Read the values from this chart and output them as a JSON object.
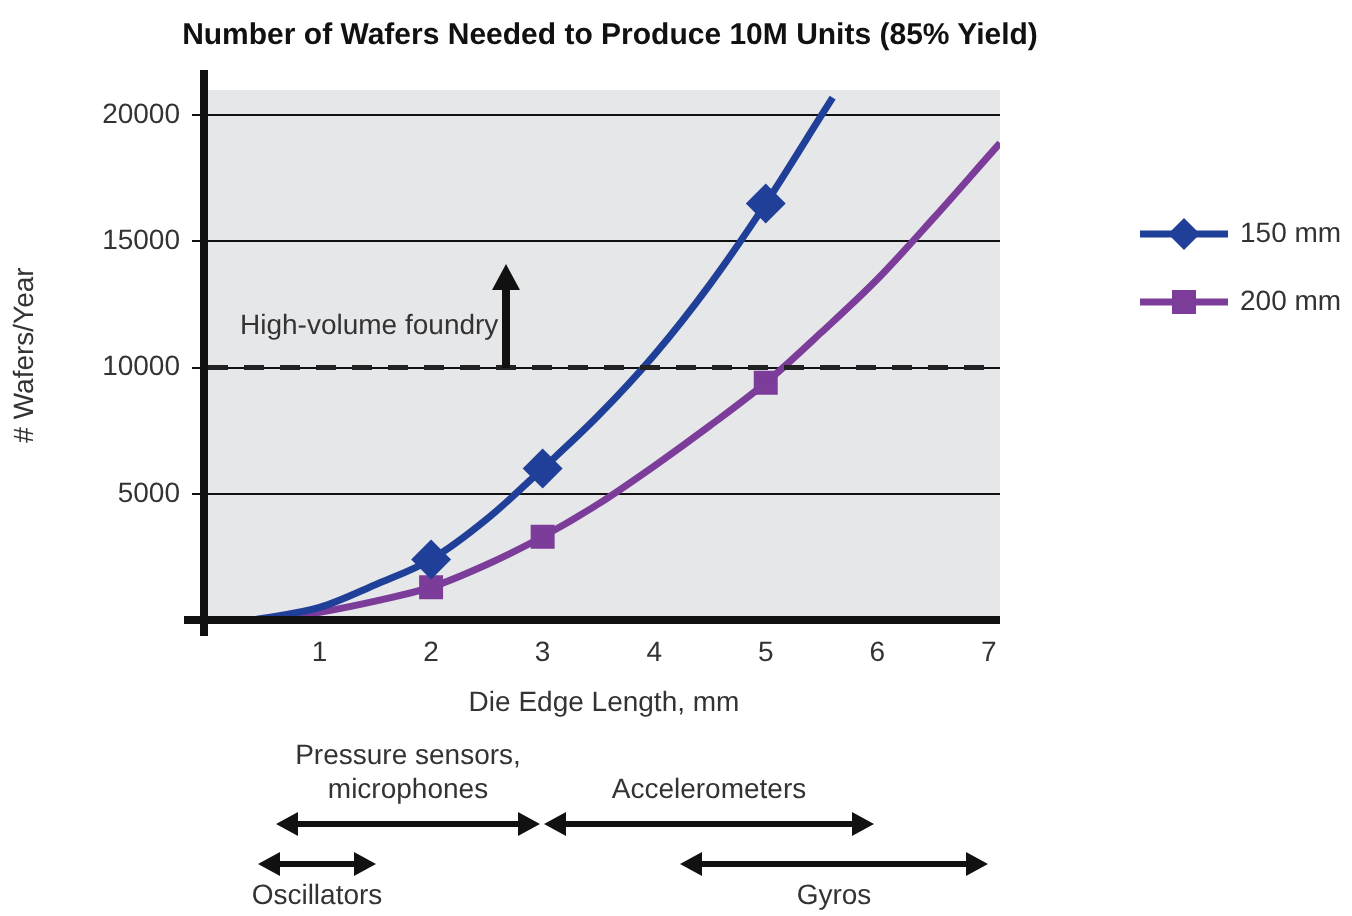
{
  "chart_data": {
    "type": "line",
    "title": "Number of Wafers Needed to Produce 10M Units (85% Yield)",
    "xlabel": "Die Edge Length, mm",
    "ylabel": "# Wafers/Year",
    "xlim": [
      0,
      7.1
    ],
    "xticks": [
      1,
      2,
      3,
      4,
      5,
      6,
      7
    ],
    "ylim": [
      0,
      21000
    ],
    "yticks": [
      5000,
      10000,
      15000,
      20000
    ],
    "grid": "y",
    "legend": "right",
    "series": [
      {
        "name": "150 mm",
        "color": "#1f3f99",
        "marker": "none",
        "x": [
          0.4,
          1,
          1.5,
          2,
          2.5,
          3,
          3.5,
          4,
          4.5,
          5,
          5.5,
          5.6
        ],
        "values": [
          0,
          500,
          1400,
          2400,
          4000,
          6000,
          8100,
          10500,
          13300,
          16500,
          20000,
          20700
        ]
      },
      {
        "color": "#1f3f99",
        "type": "scatter",
        "marker": "diamond",
        "x": [
          2,
          3,
          5
        ],
        "values": [
          2400,
          6000,
          16500
        ]
      },
      {
        "name": "200 mm",
        "color": "#7b3c9a",
        "marker": "none",
        "x": [
          0.6,
          1,
          1.5,
          2,
          2.5,
          3,
          3.5,
          4,
          4.5,
          5,
          5.5,
          6,
          6.5,
          7,
          7.1
        ],
        "values": [
          0,
          300,
          750,
          1300,
          2200,
          3300,
          4600,
          6100,
          7700,
          9400,
          11400,
          13500,
          15900,
          18400,
          18900
        ]
      },
      {
        "color": "#7b3c9a",
        "type": "scatter",
        "marker": "square",
        "x": [
          2,
          3,
          5
        ],
        "values": [
          1300,
          3300,
          9400
        ]
      }
    ],
    "ref_lines": [
      {
        "axis": "y",
        "value": 10000,
        "label": "High-volume foundry",
        "color": "#222222",
        "line_style": "dashed"
      }
    ],
    "annotations": [
      "Pressure sensors,\nmicrophones",
      "Accelerometers",
      "Oscillators",
      "Gyros"
    ]
  }
}
